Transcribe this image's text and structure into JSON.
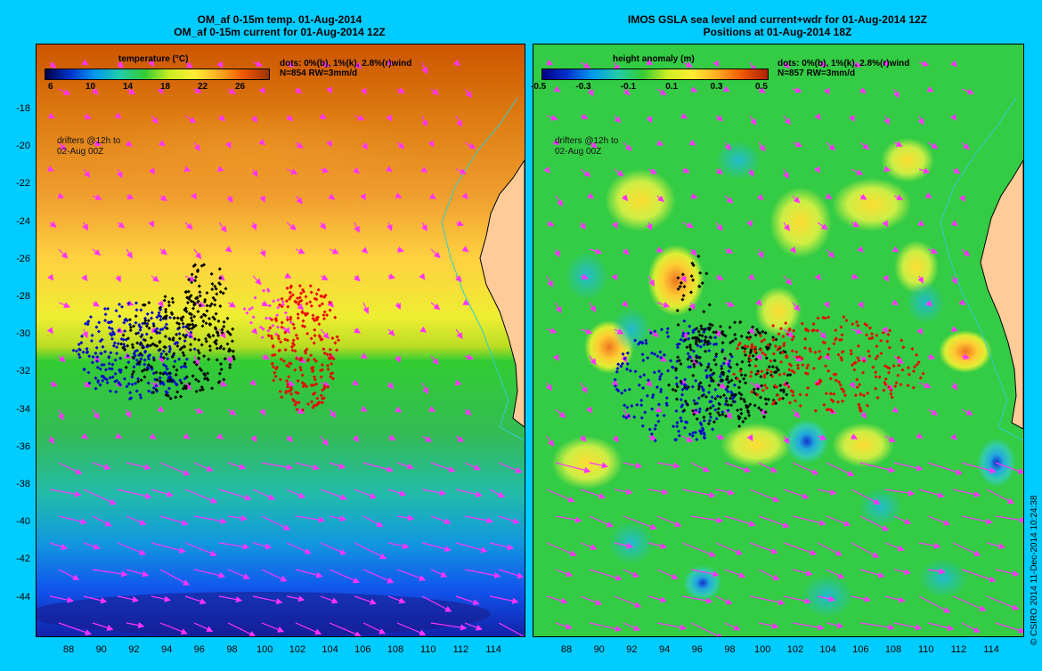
{
  "left_panel": {
    "title_line1": "OM_af 0-15m temp. 01-Aug-2014",
    "title_line2": "OM_af 0-15m current for 01-Aug-2014 12Z",
    "colorbar_title": "temperature (°C)",
    "colorbar_ticks": [
      "6",
      "10",
      "14",
      "18",
      "22",
      "26"
    ],
    "dots_note_line1": "dots: 0%(b), 1%(k), 2.8%(r)wind",
    "dots_note_line2": "N=854 RW=3mm/d",
    "drifter_note_line1": "drifters @12h to",
    "drifter_note_line2": "02-Aug 00Z"
  },
  "right_panel": {
    "title_line1": "IMOS GSLA sea level and current+wdr for 01-Aug-2014 12Z",
    "title_line2": "Positions at 01-Aug-2014 18Z",
    "colorbar_title": "height anomaly (m)",
    "colorbar_ticks": [
      "-0.5",
      "-0.3",
      "-0.1",
      "0.1",
      "0.3",
      "0.5"
    ],
    "dots_note_line1": "dots: 0%(b), 1%(k), 2.8%(r)wind",
    "dots_note_line2": "N=857 RW=3mm/d",
    "drifter_note_line1": "drifters @12h to",
    "drifter_note_line2": "02-Aug 00Z"
  },
  "y_axis_labels": [
    "-18",
    "-20",
    "-22",
    "-24",
    "-26",
    "-28",
    "-30",
    "-32",
    "-34",
    "-36",
    "-38",
    "-40",
    "-42",
    "-44"
  ],
  "x_axis_labels": [
    "88",
    "90",
    "92",
    "94",
    "96",
    "98",
    "100",
    "102",
    "104",
    "106",
    "108",
    "110",
    "112",
    "114"
  ],
  "copyright": "© CSIRO 2014   11-Dec-2014 10:24:38",
  "colors": {
    "background": "#00ccff",
    "arrows": "#ff33ff",
    "dots_blue": "#0000cc",
    "dots_black": "#000000",
    "dots_red": "#ee0000",
    "land": "#ffcc99",
    "coast_contour": "#33cccc"
  }
}
